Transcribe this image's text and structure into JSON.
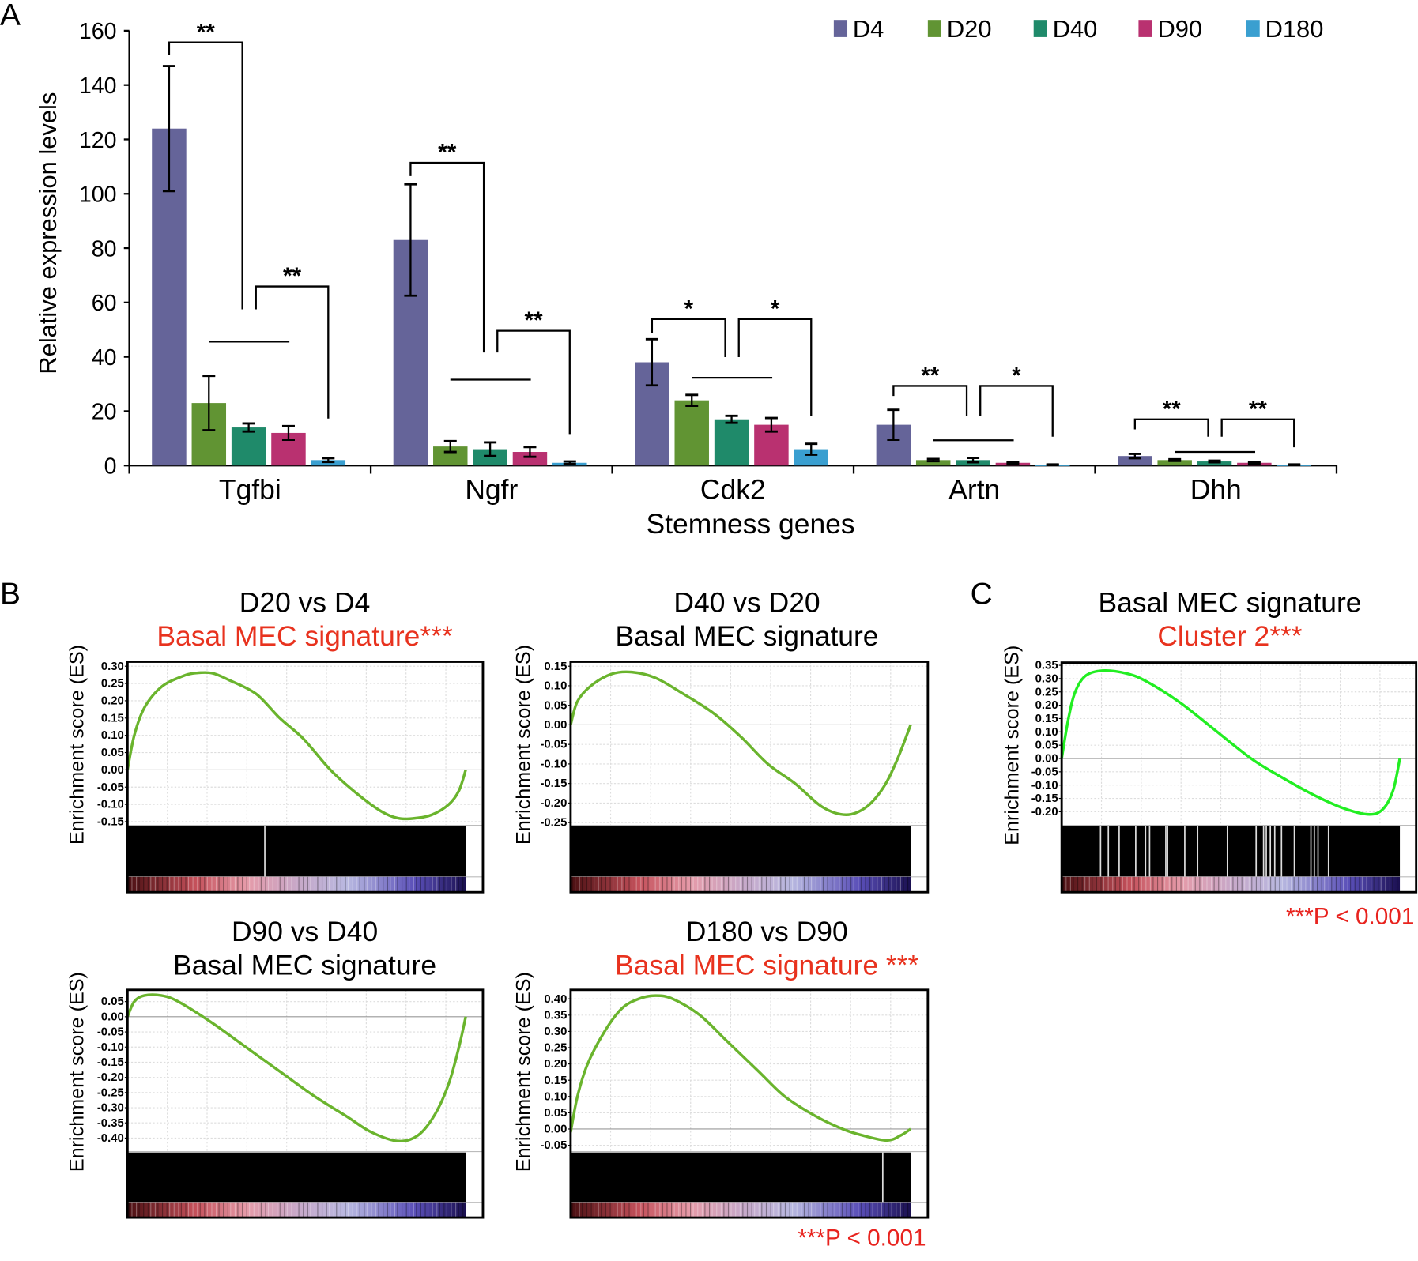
{
  "panel_labels": {
    "a": "A",
    "b": "B",
    "c": "C"
  },
  "chart_data": [
    {
      "type": "bar",
      "title": "",
      "ylabel": "Relative expression levels",
      "xlabel": "Stemness genes",
      "ylim": [
        0,
        160
      ],
      "yticks": [
        0,
        20,
        40,
        60,
        80,
        100,
        120,
        140,
        160
      ],
      "legend_position": "top-right",
      "categories": [
        "Tgfbi",
        "Ngfr",
        "Cdk2",
        "Artn",
        "Dhh"
      ],
      "series": [
        {
          "name": "D4",
          "color": "#656499",
          "values": [
            124,
            83,
            38,
            15,
            3.5
          ],
          "errors": [
            23,
            20.5,
            8.5,
            5.5,
            0.8
          ]
        },
        {
          "name": "D20",
          "color": "#619433",
          "values": [
            23,
            7,
            24,
            2,
            2
          ],
          "errors": [
            10,
            2,
            2,
            0.4,
            0.3
          ]
        },
        {
          "name": "D40",
          "color": "#1f8a6a",
          "values": [
            14,
            6,
            17,
            2,
            1.5
          ],
          "errors": [
            1.5,
            2.5,
            1.3,
            0.8,
            0.3
          ]
        },
        {
          "name": "D90",
          "color": "#b93170",
          "values": [
            12,
            5,
            15,
            1,
            1
          ],
          "errors": [
            2.5,
            1.8,
            2.5,
            0.3,
            0.3
          ]
        },
        {
          "name": "D180",
          "color": "#3a9fd0",
          "values": [
            2,
            1,
            6,
            0.3,
            0.3
          ],
          "errors": [
            0.7,
            0.5,
            2,
            0.1,
            0.1
          ]
        }
      ],
      "significance": [
        {
          "category": "Tgfbi",
          "line_level": 45.6,
          "brackets": [
            {
              "label": "**",
              "top": 155.7,
              "left_end": 151,
              "right_end": 57.5
            },
            {
              "label": "**",
              "top": 65.9,
              "left_end": 57.5,
              "right_end": 17.3
            }
          ]
        },
        {
          "category": "Ngfr",
          "line_level": 31.6,
          "brackets": [
            {
              "label": "**",
              "top": 111.4,
              "left_end": 106.5,
              "right_end": 41.6
            },
            {
              "label": "**",
              "top": 49.6,
              "left_end": 41.6,
              "right_end": 11.6
            }
          ]
        },
        {
          "category": "Cdk2",
          "line_level": 32.3,
          "brackets": [
            {
              "label": "*",
              "top": 53.9,
              "left_end": 48.9,
              "right_end": 39.9
            },
            {
              "label": "*",
              "top": 53.9,
              "left_end": 39.9,
              "right_end": 18.3
            }
          ]
        },
        {
          "category": "Artn",
          "line_level": 9.3,
          "brackets": [
            {
              "label": "**",
              "top": 29.3,
              "left_end": 25.6,
              "right_end": 18.3
            },
            {
              "label": "*",
              "top": 29.3,
              "left_end": 18.3,
              "right_end": 10.6
            }
          ]
        },
        {
          "category": "Dhh",
          "line_level": 5,
          "brackets": [
            {
              "label": "**",
              "top": 17,
              "left_end": 13.3,
              "right_end": 10.6
            },
            {
              "label": "**",
              "top": 17,
              "left_end": 10.6,
              "right_end": 6.7
            }
          ]
        }
      ]
    },
    {
      "type": "line",
      "panel": "B",
      "title_line1": "D20 vs D4",
      "title_line2": "Basal MEC signature***",
      "title_line2_color": "#e8321e",
      "ylabel": "Enrichment score (ES)",
      "curve_color": "#6ab42d",
      "yticks": [
        "0.30",
        "0.25",
        "0.20",
        "0.15",
        "0.10",
        "0.05",
        "0.00",
        "-0.05",
        "-0.10",
        "-0.15"
      ],
      "ylim": [
        -0.15,
        0.3
      ],
      "curve": {
        "x": [
          0,
          0.02,
          0.05,
          0.1,
          0.16,
          0.2,
          0.25,
          0.3,
          0.38,
          0.45,
          0.52,
          0.6,
          0.68,
          0.75,
          0.8,
          0.85,
          0.9,
          0.95,
          0.98,
          1
        ],
        "y": [
          0,
          0.1,
          0.18,
          0.24,
          0.27,
          0.28,
          0.28,
          0.26,
          0.22,
          0.15,
          0.09,
          0.0,
          -0.07,
          -0.12,
          -0.14,
          -0.14,
          -0.13,
          -0.1,
          -0.06,
          0
        ]
      },
      "hits": [
        0.406
      ]
    },
    {
      "type": "line",
      "panel": "B",
      "title_line1": "D40 vs D20",
      "title_line2": "Basal MEC signature",
      "title_line2_color": "#000000",
      "ylabel": "Enrichment score (ES)",
      "curve_color": "#6ab42d",
      "yticks": [
        "0.15",
        "0.10",
        "0.05",
        "0.00",
        "-0.05",
        "-0.10",
        "-0.15",
        "-0.20",
        "-0.25"
      ],
      "ylim": [
        -0.25,
        0.15
      ],
      "curve": {
        "x": [
          0,
          0.02,
          0.06,
          0.12,
          0.18,
          0.25,
          0.33,
          0.42,
          0.5,
          0.58,
          0.66,
          0.74,
          0.81,
          0.87,
          0.92,
          0.96,
          1
        ],
        "y": [
          0,
          0.06,
          0.1,
          0.13,
          0.135,
          0.12,
          0.08,
          0.03,
          -0.03,
          -0.1,
          -0.15,
          -0.21,
          -0.23,
          -0.21,
          -0.16,
          -0.09,
          0
        ]
      },
      "hits": []
    },
    {
      "type": "line",
      "panel": "B",
      "title_line1": "D90 vs D40",
      "title_line2": "Basal MEC signature",
      "title_line2_color": "#000000",
      "ylabel": "Enrichment score (ES)",
      "curve_color": "#6ab42d",
      "yticks": [
        "0.05",
        "0.00",
        "-0.05",
        "-0.10",
        "-0.15",
        "-0.20",
        "-0.25",
        "-0.30",
        "-0.35",
        "-0.40"
      ],
      "ylim": [
        -0.4,
        0.05
      ],
      "curve": {
        "x": [
          0,
          0.02,
          0.05,
          0.1,
          0.15,
          0.25,
          0.35,
          0.45,
          0.55,
          0.65,
          0.72,
          0.8,
          0.86,
          0.91,
          0.95,
          0.98,
          1
        ],
        "y": [
          0,
          0.05,
          0.07,
          0.07,
          0.05,
          -0.02,
          -0.1,
          -0.18,
          -0.26,
          -0.33,
          -0.38,
          -0.41,
          -0.39,
          -0.32,
          -0.22,
          -0.1,
          0
        ]
      },
      "hits": []
    },
    {
      "type": "line",
      "panel": "B",
      "title_line1": "D180 vs D90",
      "title_line2": "Basal MEC signature ***",
      "title_line2_color": "#e8321e",
      "ylabel": "Enrichment score (ES)",
      "curve_color": "#6ab42d",
      "yticks": [
        "0.40",
        "0.35",
        "0.30",
        "0.25",
        "0.20",
        "0.15",
        "0.10",
        "0.05",
        "0.00",
        "-0.05"
      ],
      "ylim": [
        -0.05,
        0.4
      ],
      "curve": {
        "x": [
          0,
          0.02,
          0.05,
          0.1,
          0.15,
          0.2,
          0.25,
          0.3,
          0.38,
          0.46,
          0.55,
          0.63,
          0.72,
          0.8,
          0.86,
          0.93,
          0.97,
          1
        ],
        "y": [
          -0.01,
          0.1,
          0.2,
          0.3,
          0.37,
          0.4,
          0.41,
          0.4,
          0.35,
          0.27,
          0.18,
          0.1,
          0.04,
          0.0,
          -0.02,
          -0.035,
          -0.02,
          0
        ]
      },
      "hits": [
        0.918
      ],
      "pvalue": "***P < 0.001"
    },
    {
      "type": "line",
      "panel": "C",
      "title_line1": "Basal MEC signature",
      "title_line2": "Cluster 2***",
      "title_line2_color": "#e8321e",
      "ylabel": "Enrichment score (ES)",
      "curve_color": "#22ee22",
      "yticks": [
        "0.35",
        "0.30",
        "0.25",
        "0.20",
        "0.15",
        "0.10",
        "0.05",
        "0.00",
        "-0.05",
        "-0.10",
        "-0.15",
        "-0.20"
      ],
      "ylim": [
        -0.2,
        0.35
      ],
      "curve": {
        "x": [
          0,
          0.02,
          0.04,
          0.07,
          0.12,
          0.19,
          0.25,
          0.35,
          0.45,
          0.56,
          0.65,
          0.75,
          0.84,
          0.91,
          0.95,
          0.98,
          1
        ],
        "y": [
          0,
          0.15,
          0.25,
          0.31,
          0.33,
          0.32,
          0.29,
          0.21,
          0.11,
          0.0,
          -0.07,
          -0.14,
          -0.19,
          -0.21,
          -0.19,
          -0.12,
          0
        ]
      },
      "hits": [
        0.115,
        0.138,
        0.17,
        0.219,
        0.248,
        0.26,
        0.308,
        0.313,
        0.364,
        0.402,
        0.49,
        0.575,
        0.597,
        0.605,
        0.617,
        0.63,
        0.65,
        0.688,
        0.737,
        0.747,
        0.758,
        0.789
      ],
      "pvalue": "***P < 0.001"
    }
  ]
}
